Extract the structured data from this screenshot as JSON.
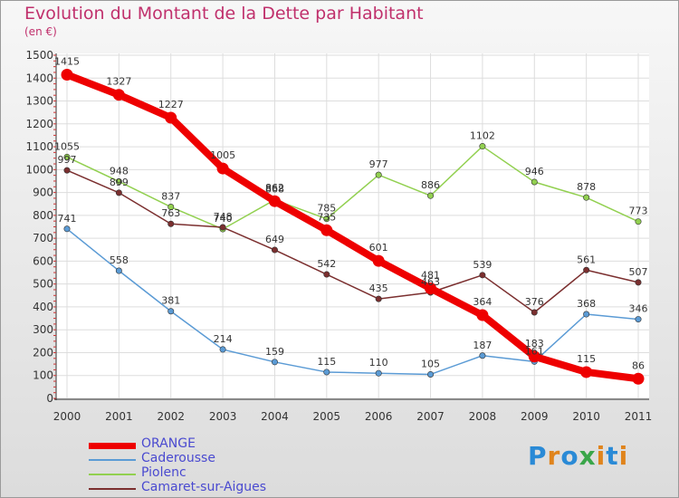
{
  "title": "Evolution du Montant de la Dette par Habitant",
  "subtitle": "(en €)",
  "logo": {
    "text": "Proxiti",
    "colors": [
      "#2a8ad6",
      "#e0841c",
      "#2a8ad6",
      "#3aa64a",
      "#e0841c",
      "#2a8ad6",
      "#e0841c"
    ]
  },
  "chart_data": {
    "type": "line",
    "x": [
      "2000",
      "2001",
      "2002",
      "2003",
      "2004",
      "2005",
      "2006",
      "2007",
      "2008",
      "2009",
      "2010",
      "2011"
    ],
    "ylim": [
      0,
      1500
    ],
    "y_ticks": [
      0,
      100,
      200,
      300,
      400,
      500,
      600,
      700,
      800,
      900,
      1000,
      1100,
      1200,
      1300,
      1400,
      1500
    ],
    "grid": true,
    "legend_position": "bottom-left",
    "series": [
      {
        "name": "Caderousse",
        "color": "#5b9bd5",
        "values": [
          741,
          558,
          381,
          214,
          159,
          115,
          110,
          105,
          187,
          161,
          368,
          346
        ]
      },
      {
        "name": "Piolenc",
        "color": "#92d050",
        "values": [
          1055,
          948,
          837,
          740,
          868,
          785,
          977,
          886,
          1102,
          946,
          878,
          773
        ]
      },
      {
        "name": "Camaret-sur-Aigues",
        "color": "#7b2f2f",
        "values": [
          997,
          899,
          763,
          748,
          649,
          542,
          435,
          463,
          539,
          376,
          561,
          507
        ]
      },
      {
        "name": "ORANGE",
        "color": "#ee0000",
        "values": [
          1415,
          1327,
          1227,
          1005,
          862,
          735,
          601,
          481,
          364,
          183,
          115,
          86
        ]
      }
    ]
  }
}
